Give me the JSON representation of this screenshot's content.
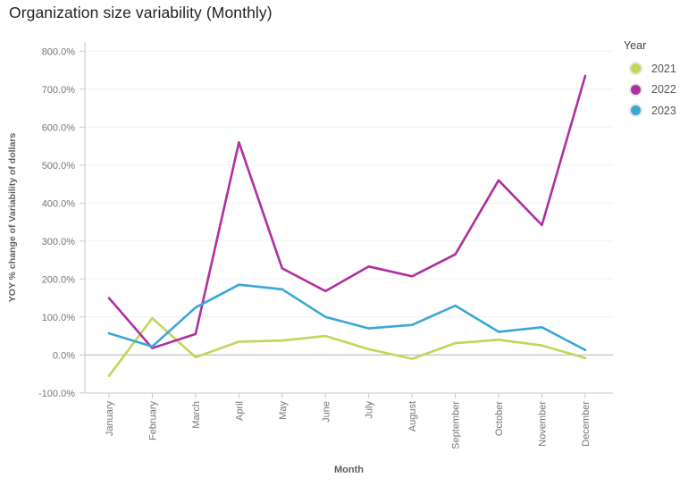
{
  "title": "Organization size variability (Monthly)",
  "legend": {
    "title": "Year",
    "items": [
      {
        "label": "2021",
        "color": "#c3d655"
      },
      {
        "label": "2022",
        "color": "#ae2fa0"
      },
      {
        "label": "2023",
        "color": "#39a8d5"
      }
    ]
  },
  "chart_data": {
    "type": "line",
    "title": "Organization size variability (Monthly)",
    "xlabel": "Month",
    "ylabel": "YOY % change of Variability of dollars",
    "categories": [
      "January",
      "February",
      "March",
      "April",
      "May",
      "June",
      "July",
      "August",
      "September",
      "October",
      "November",
      "December"
    ],
    "ylim": [
      -100,
      800
    ],
    "ytick_step": 100,
    "ytick_labels": [
      "800.0%",
      "700.0%",
      "600.0%",
      "500.0%",
      "400.0%",
      "300.0%",
      "200.0%",
      "100.0%",
      "0.0%",
      "-100.0%"
    ],
    "grid": true,
    "legend_position": "right",
    "series": [
      {
        "name": "2021",
        "color": "#c3d655",
        "values": [
          -55,
          97,
          -6,
          35,
          38,
          50,
          15,
          -10,
          31,
          40,
          25,
          -8
        ]
      },
      {
        "name": "2022",
        "color": "#ae2fa0",
        "values": [
          150,
          18,
          55,
          560,
          228,
          168,
          233,
          207,
          265,
          460,
          342,
          735
        ]
      },
      {
        "name": "2023",
        "color": "#39a8d5",
        "values": [
          57,
          22,
          125,
          185,
          173,
          100,
          70,
          79,
          130,
          61,
          73,
          13
        ]
      }
    ],
    "colors": {
      "zero_line": "#b3b3b3",
      "gridline": "#f2f2f2",
      "axis_line": "#c9c9c9",
      "tick_label": "#757575",
      "axis_title": "#5f5f5f"
    }
  }
}
